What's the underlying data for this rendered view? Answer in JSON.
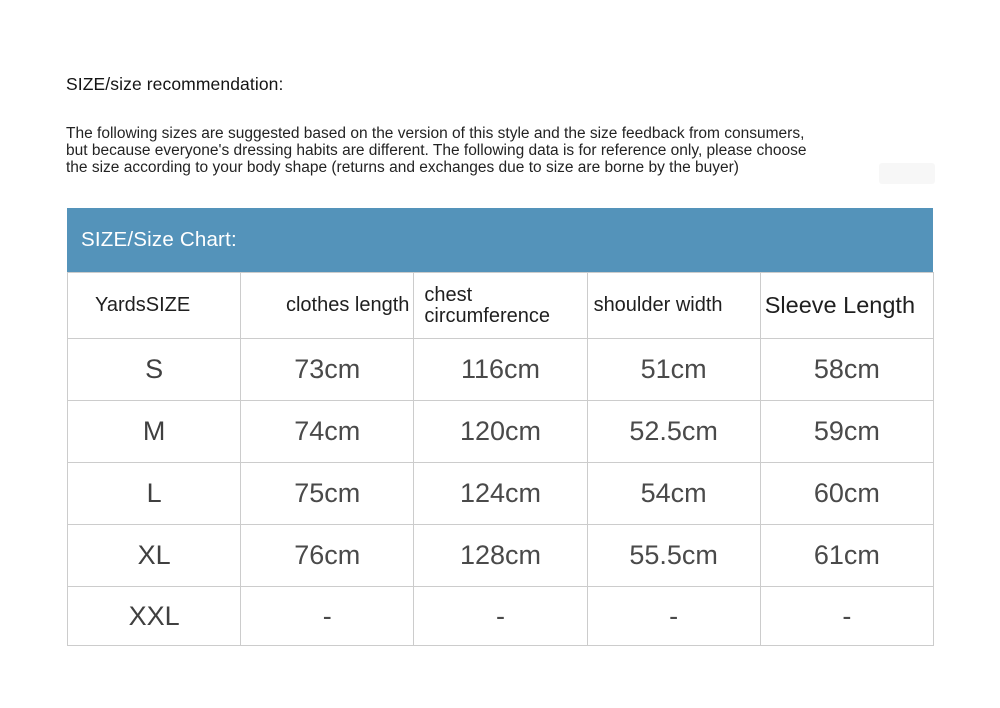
{
  "page": {
    "title": "SIZE/size recommendation:",
    "description": {
      "line1": "The following sizes are suggested based on the version of this style and the size feedback from consumers,",
      "line2": "but because everyone's dressing habits are different. The following data is for reference only, please choose",
      "line3": "the size according to your body shape (returns and exchanges due to size are borne by the buyer)"
    }
  },
  "size_chart": {
    "header_bar_label": "SIZE/Size Chart:",
    "columns": [
      "YardsSIZE",
      "clothes length",
      "chest circumference",
      "shoulder width",
      "Sleeve Length"
    ],
    "rows": [
      {
        "size": "S",
        "values": [
          "73cm",
          "116cm",
          "51cm",
          "58cm"
        ]
      },
      {
        "size": "M",
        "values": [
          "74cm",
          "120cm",
          "52.5cm",
          "59cm"
        ]
      },
      {
        "size": "L",
        "values": [
          "75cm",
          "124cm",
          "54cm",
          "60cm"
        ]
      },
      {
        "size": "XL",
        "values": [
          "76cm",
          "128cm",
          "55.5cm",
          "61cm"
        ]
      },
      {
        "size": "XXL",
        "values": [
          "-",
          "-",
          "-",
          "-"
        ]
      }
    ]
  },
  "colors": {
    "accent_blue": "#5493BA",
    "table_border": "#cccccc",
    "data_text": "#4a4a4a"
  }
}
